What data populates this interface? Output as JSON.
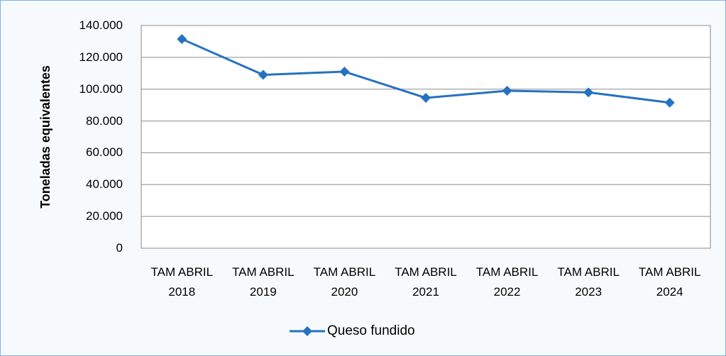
{
  "chart_data": {
    "type": "line",
    "y_label": "Toneladas equivalentes",
    "categories": [
      "TAM ABRIL 2018",
      "TAM ABRIL 2019",
      "TAM ABRIL 2020",
      "TAM ABRIL 2021",
      "TAM ABRIL 2022",
      "TAM ABRIL 2023",
      "TAM ABRIL 2024"
    ],
    "series": [
      {
        "name": "Queso fundido",
        "color": "#2672c0",
        "values": [
          131500,
          109000,
          111000,
          94500,
          99000,
          98000,
          91500
        ]
      }
    ],
    "ylim": [
      0,
      140000
    ],
    "yticks": [
      0,
      {
        "value": 20000,
        "label": "20.000"
      },
      {
        "value": 40000,
        "label": "40.000"
      },
      {
        "value": 60000,
        "label": "60.000"
      },
      {
        "value": 80000,
        "label": "80.000"
      },
      {
        "value": 100000,
        "label": "100.000"
      },
      {
        "value": 120000,
        "label": "120.000"
      },
      {
        "value": 140000,
        "label": "140.000"
      }
    ],
    "grid": true,
    "legend": "bottom"
  }
}
